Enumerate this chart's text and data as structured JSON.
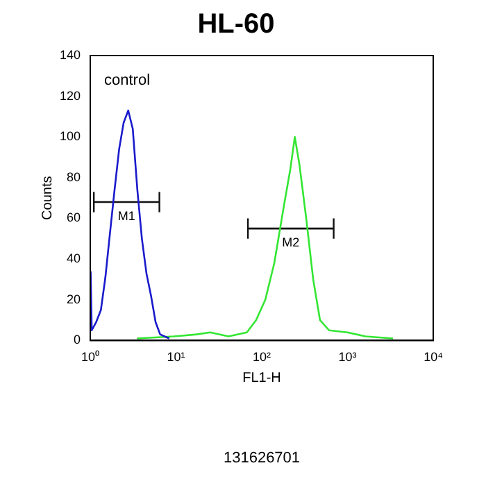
{
  "chart_data": {
    "type": "line",
    "title": "HL-60",
    "xlabel": "FL1-H",
    "ylabel": "Counts",
    "log": "x",
    "xlim": [
      1,
      10000
    ],
    "xticks": [
      {
        "value": 1,
        "label": "10⁰"
      },
      {
        "value": 10,
        "label": "10¹"
      },
      {
        "value": 100,
        "label": "10²"
      },
      {
        "value": 1000,
        "label": "10³"
      },
      {
        "value": 10000,
        "label": "10⁴"
      }
    ],
    "ylim": [
      0,
      140
    ],
    "yticks": [
      0,
      20,
      40,
      60,
      80,
      100,
      120,
      140
    ],
    "grid": false,
    "legend": false,
    "marker": "none",
    "series": [
      {
        "color": "#1a1acc",
        "x": [
          1.01,
          1.04,
          1.17,
          1.33,
          1.5,
          1.69,
          1.92,
          2.17,
          2.45,
          2.77,
          3.13,
          3.54,
          4,
          4.52,
          5.11,
          5.78,
          6.53,
          8.34
        ],
        "values": [
          34,
          5,
          9,
          15,
          31,
          52,
          74,
          94,
          107,
          113,
          104,
          74,
          50,
          33,
          22,
          9,
          3,
          1
        ]
      },
      {
        "color": "#33e633",
        "x": [
          3.5,
          9.4,
          17.4,
          25,
          41,
          67,
          86,
          110,
          140,
          181,
          215,
          243,
          276,
          330,
          398,
          478,
          610,
          1000,
          1620,
          3390
        ],
        "values": [
          1,
          2,
          3,
          4,
          2,
          4,
          10,
          20,
          38,
          66,
          84,
          100,
          86,
          60,
          30,
          10,
          5,
          4,
          2,
          1
        ]
      },
      {
        "type": "line",
        "color": "#111111",
        "x": [
          1.1,
          6.4
        ],
        "values": [
          68,
          68
        ],
        "errors": [
          5,
          5
        ]
      },
      {
        "type": "line",
        "color": "#111111",
        "x": [
          69,
          690
        ],
        "values": [
          55,
          55
        ],
        "errors": [
          5,
          5
        ]
      }
    ],
    "annotations": [
      "control",
      {
        "text": "M1",
        "x": 2.65,
        "y": 68
      },
      {
        "text": "M2",
        "x": 218,
        "y": 55
      },
      "131626701"
    ]
  }
}
